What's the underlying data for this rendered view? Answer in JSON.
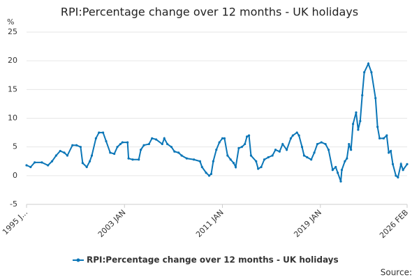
{
  "chart_data": {
    "type": "line",
    "title": "RPI:Percentage change over 12 months - UK holidays",
    "y_label": "%",
    "source": "Source:",
    "x": [
      "1995-01",
      "1995-05",
      "1995-09",
      "1996-04",
      "1996-10",
      "1997-02",
      "1997-06",
      "1997-10",
      "1998-02",
      "1998-05",
      "1998-10",
      "1999-02",
      "1999-06",
      "1999-08",
      "1999-12",
      "2000-03",
      "2000-05",
      "2000-09",
      "2000-12",
      "2001-04",
      "2001-07",
      "2001-11",
      "2002-03",
      "2002-06",
      "2002-09",
      "2002-11",
      "2003-04",
      "2003-05",
      "2003-09",
      "2004-03",
      "2004-05",
      "2004-08",
      "2005-01",
      "2005-04",
      "2005-08",
      "2006-02",
      "2006-04",
      "2006-07",
      "2006-11",
      "2007-02",
      "2007-06",
      "2007-09",
      "2008-02",
      "2008-09",
      "2009-03",
      "2009-05",
      "2009-09",
      "2009-12",
      "2010-02",
      "2010-04",
      "2010-07",
      "2010-10",
      "2011-01",
      "2011-03",
      "2011-06",
      "2011-09",
      "2011-12",
      "2012-02",
      "2012-05",
      "2012-08",
      "2012-11",
      "2013-01",
      "2013-03",
      "2013-05",
      "2013-10",
      "2013-12",
      "2014-03",
      "2014-06",
      "2014-10",
      "2015-02",
      "2015-05",
      "2015-09",
      "2015-12",
      "2016-04",
      "2016-08",
      "2016-10",
      "2017-02",
      "2017-04",
      "2017-07",
      "2017-09",
      "2017-12",
      "2018-04",
      "2018-07",
      "2018-10",
      "2019-02",
      "2019-06",
      "2019-09",
      "2020-01",
      "2020-04",
      "2020-06",
      "2020-09",
      "2020-10",
      "2021-01",
      "2021-03",
      "2021-05",
      "2021-07",
      "2021-09",
      "2021-12",
      "2022-02",
      "2022-04",
      "2022-06",
      "2022-08",
      "2022-12",
      "2023-03",
      "2023-07",
      "2023-09",
      "2023-11",
      "2024-03",
      "2024-06",
      "2024-08",
      "2024-10",
      "2024-12",
      "2025-03",
      "2025-05",
      "2025-08",
      "2025-10",
      "2026-02"
    ],
    "series": [
      {
        "name": "RPI:Percentage change over 12 months - UK holidays",
        "color": "#0b76b7",
        "values": [
          1.8,
          1.5,
          2.3,
          2.3,
          1.8,
          2.5,
          3.5,
          4.3,
          4.0,
          3.5,
          5.3,
          5.3,
          5.0,
          2.2,
          1.5,
          2.5,
          3.5,
          6.5,
          7.5,
          7.5,
          6.0,
          4.0,
          3.8,
          5.0,
          5.5,
          5.8,
          5.8,
          3.0,
          2.8,
          2.8,
          4.5,
          5.3,
          5.5,
          6.5,
          6.3,
          5.5,
          6.5,
          5.5,
          5.0,
          4.2,
          4.0,
          3.5,
          3.0,
          2.8,
          2.5,
          1.5,
          0.5,
          0.0,
          0.3,
          2.5,
          4.5,
          5.8,
          6.5,
          6.5,
          3.5,
          2.8,
          2.2,
          1.5,
          4.8,
          5.0,
          5.5,
          6.8,
          7.0,
          3.5,
          2.5,
          1.2,
          1.5,
          2.8,
          3.2,
          3.5,
          4.5,
          4.2,
          5.5,
          4.5,
          6.5,
          7.0,
          7.5,
          7.0,
          5.0,
          3.5,
          3.2,
          2.8,
          4.0,
          5.5,
          5.8,
          5.5,
          4.5,
          1.0,
          1.5,
          0.5,
          -1.0,
          1.0,
          2.5,
          3.0,
          5.5,
          4.5,
          9.0,
          11.0,
          8.0,
          9.5,
          14.0,
          18.0,
          19.5,
          18.0,
          13.5,
          8.5,
          6.5,
          6.5,
          7.0,
          4.0,
          4.3,
          2.0,
          0.0,
          -0.3,
          2.0,
          1.0,
          2.0
        ]
      }
    ],
    "xlim": [
      "1995-01",
      "2026-02"
    ],
    "xticks": [
      {
        "value": "1995-01",
        "label": "1995 J..."
      },
      {
        "value": "2003-01",
        "label": "2003 JAN"
      },
      {
        "value": "2011-01",
        "label": "2011 JAN"
      },
      {
        "value": "2019-01",
        "label": "2019 JAN"
      },
      {
        "value": "2026-02",
        "label": "2026 FEB"
      }
    ],
    "ylim": [
      -5,
      25
    ],
    "yticks": [
      -5,
      0,
      5,
      10,
      15,
      20,
      25
    ],
    "grid": true,
    "legend": "bottom"
  }
}
